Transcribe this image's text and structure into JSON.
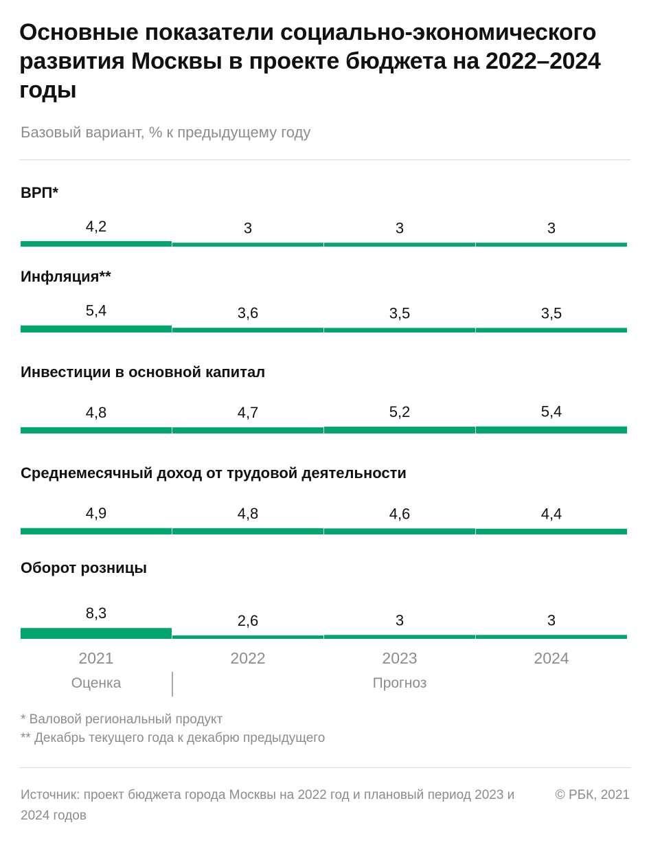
{
  "chart_data": {
    "type": "bar",
    "title": "Основные показатели социально-экономического развития Москвы в проекте бюджета на 2022–2024 годы",
    "subtitle": "Базовый вариант, % к предыдущему году",
    "categories": [
      "2021",
      "2022",
      "2023",
      "2024"
    ],
    "period_labels": {
      "estimate": "Оценка",
      "forecast": "Прогноз"
    },
    "color": "#00a66e",
    "series": [
      {
        "name": "ВРП*",
        "values": [
          4.2,
          3,
          3,
          3
        ],
        "labels": [
          "4,2",
          "3",
          "3",
          "3"
        ]
      },
      {
        "name": "Инфляция**",
        "values": [
          5.4,
          3.6,
          3.5,
          3.5
        ],
        "labels": [
          "5,4",
          "3,6",
          "3,5",
          "3,5"
        ]
      },
      {
        "name": "Инвестиции в основной капитал",
        "values": [
          4.8,
          4.7,
          5.2,
          5.4
        ],
        "labels": [
          "4,8",
          "4,7",
          "5,2",
          "5,4"
        ]
      },
      {
        "name": "Среднемесячный доход от трудовой деятельности",
        "values": [
          4.9,
          4.8,
          4.6,
          4.4
        ],
        "labels": [
          "4,9",
          "4,8",
          "4,6",
          "4,4"
        ]
      },
      {
        "name": "Оборот розницы",
        "values": [
          8.3,
          2.6,
          3,
          3
        ],
        "labels": [
          "8,3",
          "2,6",
          "3",
          "3"
        ]
      }
    ]
  },
  "notes": [
    "* Валовой региональный продукт",
    "** Декабрь текущего года к декабрю предыдущего"
  ],
  "source": "Источник:  проект бюджета города Москвы на 2022 год и плановый период 2023 и 2024 годов",
  "copyright": "©  РБК, 2021"
}
